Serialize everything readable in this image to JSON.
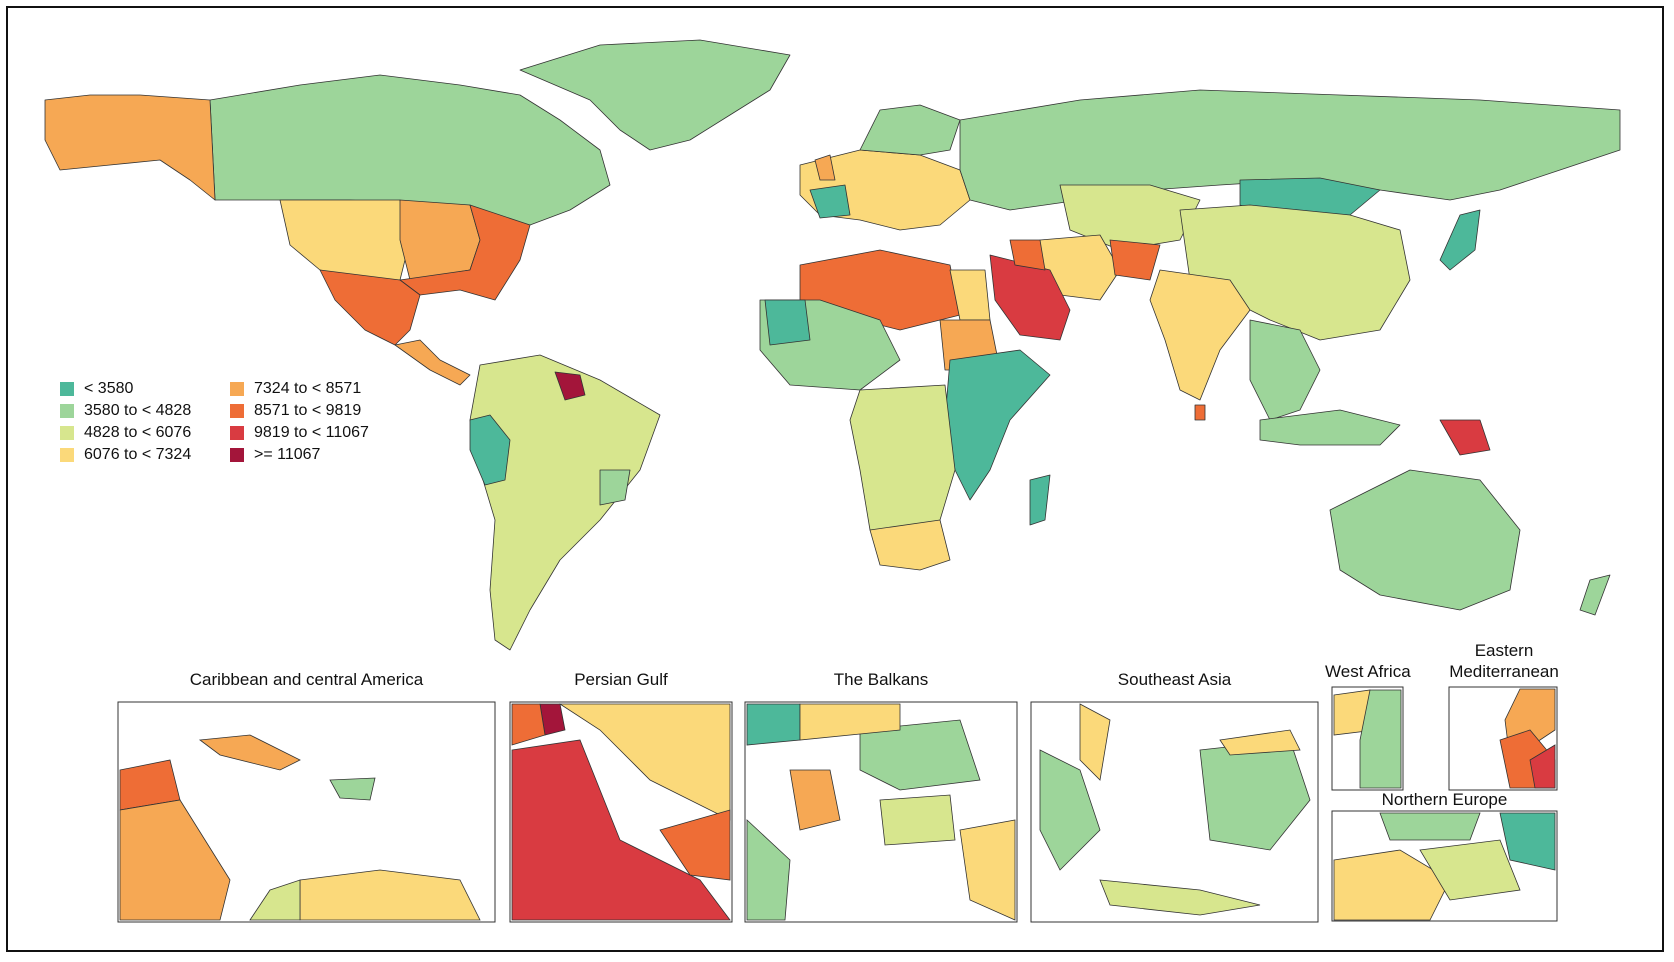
{
  "palette": {
    "c1": "#4db89a",
    "c2": "#9dd59a",
    "c3": "#d7e68e",
    "c4": "#fbd97a",
    "c5": "#f6a854",
    "c6": "#ee6d36",
    "c7": "#d93b41",
    "c8": "#a3153a",
    "ocean": "#ffffff",
    "border": "#333333"
  },
  "legend": [
    {
      "label": "< 3580",
      "color": "#4db89a"
    },
    {
      "label": "7324 to < 8571",
      "color": "#f6a854"
    },
    {
      "label": "3580 to < 4828",
      "color": "#9dd59a"
    },
    {
      "label": "8571 to < 9819",
      "color": "#ee6d36"
    },
    {
      "label": "4828 to < 6076",
      "color": "#d7e68e"
    },
    {
      "label": "9819 to < 11067",
      "color": "#d93b41"
    },
    {
      "label": "6076 to < 7324",
      "color": "#fbd97a"
    },
    {
      "label": ">= 11067",
      "color": "#a3153a"
    }
  ],
  "insets": {
    "caribbean": "Caribbean and central America",
    "persian_gulf": "Persian Gulf",
    "balkans": "The Balkans",
    "southeast_asia": "Southeast Asia",
    "west_africa": "West Africa",
    "eastern_med": "Eastern\nMediterranean",
    "northern_europe": "Northern Europe"
  }
}
